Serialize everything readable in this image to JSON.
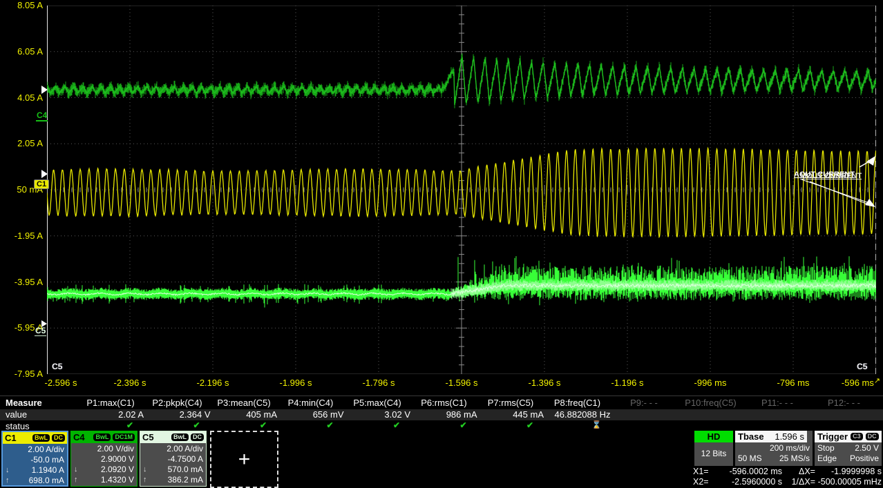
{
  "colors": {
    "c1": "#e6e600",
    "c4": "#17a517",
    "c4_bright": "#1fc21f",
    "c5": "#38ff38",
    "c5_core": "#e0ffe0",
    "grid_dot": "#5a5a5a",
    "grid_center": "#8a8a8a",
    "axis_text": "#f2f200",
    "c1_header": "#ecec00",
    "c4_header": "#00b400",
    "c5_header": "#e2f6e2",
    "c1_body": "#2e5d8c",
    "c1_border": "#5599dd",
    "box_body": "#4c4c4c",
    "hd_green": "#00dd00",
    "check_green": "#22cc22"
  },
  "y_axis": {
    "labels": [
      "8.05 A",
      "6.05 A",
      "4.05 A",
      "2.05 A",
      "50 mA",
      "-1.95 A",
      "-3.95 A",
      "-5.95 A",
      "-7.95 A"
    ]
  },
  "x_axis": {
    "labels": [
      "-2.596 s",
      "-2.396 s",
      "-2.196 s",
      "-1.996 s",
      "-1.796 s",
      "-1.596 s",
      "-1.396 s",
      "-1.196 s",
      "-996 ms",
      "-796 ms",
      "-596 ms"
    ],
    "end_arrow": "↗"
  },
  "grid_annotations": {
    "bottom_left": "C5",
    "bottom_right": "C5",
    "left_markers": {
      "c4_label": "C4",
      "c1_label": "C1",
      "c5_label": "C5"
    },
    "trace_labels": [
      "AOUT CURRENT",
      "MOUT CURRENT"
    ]
  },
  "measure": {
    "row_headers": {
      "measure": "Measure",
      "value": "value",
      "status": "status"
    },
    "columns": [
      {
        "param": "P1:max(C1)",
        "value": "2.02 A",
        "status": "ok",
        "enabled": true
      },
      {
        "param": "P2:pkpk(C4)",
        "value": "2.364 V",
        "status": "ok",
        "enabled": true
      },
      {
        "param": "P3:mean(C5)",
        "value": "405 mA",
        "status": "ok",
        "enabled": true
      },
      {
        "param": "P4:min(C4)",
        "value": "656 mV",
        "status": "ok",
        "enabled": true
      },
      {
        "param": "P5:max(C4)",
        "value": "3.02 V",
        "status": "ok",
        "enabled": true
      },
      {
        "param": "P6:rms(C1)",
        "value": "986 mA",
        "status": "ok",
        "enabled": true
      },
      {
        "param": "P7:rms(C5)",
        "value": "445 mA",
        "status": "ok",
        "enabled": true
      },
      {
        "param": "P8:freq(C1)",
        "value": "46.882088 Hz",
        "status": "pending",
        "enabled": true
      },
      {
        "param": "P9:- - -",
        "value": "",
        "status": "",
        "enabled": false
      },
      {
        "param": "P10:freq(C5)",
        "value": "",
        "status": "",
        "enabled": false
      },
      {
        "param": "P11:- - -",
        "value": "",
        "status": "",
        "enabled": false
      },
      {
        "param": "P12:- - -",
        "value": "",
        "status": "",
        "enabled": false
      }
    ]
  },
  "channels": [
    {
      "id": "C1",
      "badges": [
        "BwL",
        "DC"
      ],
      "selected": true,
      "scale": "2.00 A/div",
      "offset": "-50.0 mA",
      "indicators": [
        {
          "icon": "down-arrow",
          "text": "1.1940 A"
        },
        {
          "icon": "up-arrow",
          "text": "698.0 mA"
        }
      ]
    },
    {
      "id": "C4",
      "badges": [
        "BwL",
        "DC1M"
      ],
      "selected": false,
      "scale": "2.00 V/div",
      "offset": "2.9000 V",
      "indicators": [
        {
          "icon": "down-arrow",
          "text": "2.0920 V"
        },
        {
          "icon": "up-arrow",
          "text": "1.4320 V"
        }
      ]
    },
    {
      "id": "C5",
      "badges": [
        "BwL",
        "DC"
      ],
      "selected": false,
      "scale": "2.00 A/div",
      "offset": "-4.7500 A",
      "indicators": [
        {
          "icon": "down-arrow",
          "text": "570.0 mA"
        },
        {
          "icon": "up-arrow",
          "text": "386.2 mA"
        }
      ]
    }
  ],
  "add_channel": {
    "plus": "+"
  },
  "acquisition": {
    "mode": "HD",
    "bits": "12 Bits"
  },
  "timebase": {
    "title": "Tbase",
    "delay": "1.596 s",
    "per_div": "200 ms/div",
    "samples": "50 MS",
    "rate": "25 MS/s"
  },
  "trigger": {
    "title": "Trigger",
    "badges": [
      "C3",
      "DC"
    ],
    "mode": "Stop",
    "level": "2.50 V",
    "type": "Edge",
    "slope": "Positive"
  },
  "cursors": {
    "x1_label": "X1=",
    "x1": "-596.0002 ms",
    "x2_label": "X2=",
    "x2": "-2.5960000 s",
    "dx_label": "ΔX=",
    "dx": "-1.9999998 s",
    "inv_dx_label": "1/ΔX=",
    "inv_dx": "-500.00005 mHz"
  },
  "waveforms": [
    {
      "channel": "C1",
      "type": "sine",
      "frequency_hz": 46.882088,
      "amplitude_before_div": 0.49,
      "amplitude_after_div": 0.93,
      "center_div": -0.06,
      "transition_at_s": -1.596
    },
    {
      "channel": "C4",
      "type": "noisy-ripple-burst",
      "center_before_div": 2.17,
      "center_after_div": 2.38,
      "burst_amplitude_div": 0.55,
      "transition_at_s": -1.596
    },
    {
      "channel": "C5",
      "type": "noise-band",
      "center_before_div": -2.26,
      "center_after_div": -2.08,
      "band_before_div": 0.13,
      "band_after_div": 0.42,
      "transition_at_s": -1.596
    }
  ],
  "timebase_numeric": {
    "s_per_div": 0.2,
    "time_start_s": -2.596,
    "time_end_s": -0.596
  }
}
